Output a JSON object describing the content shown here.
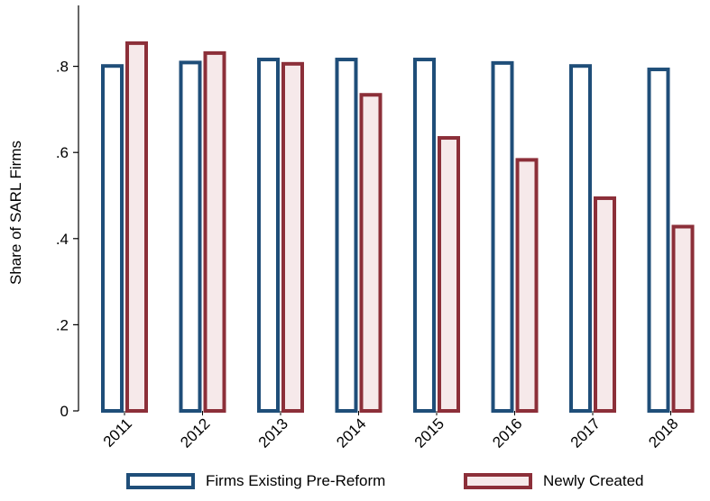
{
  "chart_data": {
    "type": "bar",
    "categories": [
      "2011",
      "2012",
      "2013",
      "2014",
      "2015",
      "2016",
      "2017",
      "2018"
    ],
    "series": [
      {
        "name": "Firms Existing Pre-Reform",
        "values": [
          0.805,
          0.813,
          0.82,
          0.82,
          0.82,
          0.812,
          0.805,
          0.797
        ],
        "stroke": "#1f4e79",
        "fill": "#ffffff"
      },
      {
        "name": "Newly Created",
        "values": [
          0.858,
          0.835,
          0.81,
          0.738,
          0.638,
          0.587,
          0.498,
          0.432
        ],
        "stroke": "#8c2f39",
        "fill": "#f6e9ea"
      }
    ],
    "title": "",
    "xlabel": "",
    "ylabel": "Share of SARL Firms",
    "ylim": [
      0,
      0.9
    ],
    "yticks": [
      0,
      0.2,
      0.4,
      0.6,
      0.8
    ],
    "ytick_labels": [
      "0",
      ".2",
      ".4",
      ".6",
      ".8"
    ],
    "grid": false,
    "legend_position": "bottom"
  }
}
